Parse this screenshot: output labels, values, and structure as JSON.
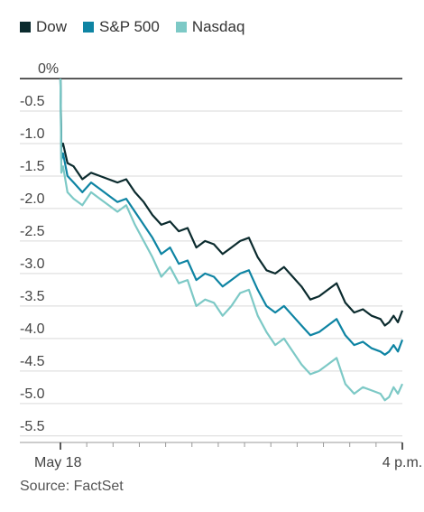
{
  "legend": {
    "items": [
      {
        "label": "Dow",
        "color": "#0b2b2e"
      },
      {
        "label": "S&P 500",
        "color": "#0e84a3"
      },
      {
        "label": "Nasdaq",
        "color": "#7dc9c6"
      }
    ]
  },
  "source": "Source: FactSet",
  "chart_data": {
    "type": "line",
    "ylim": [
      -5.6,
      0
    ],
    "y_ticks": [
      {
        "value": 0,
        "label": "0%"
      },
      {
        "value": -0.5,
        "label": "-0.5"
      },
      {
        "value": -1.0,
        "label": "-1.0"
      },
      {
        "value": -1.5,
        "label": "-1.5"
      },
      {
        "value": -2.0,
        "label": "-2.0"
      },
      {
        "value": -2.5,
        "label": "-2.5"
      },
      {
        "value": -3.0,
        "label": "-3.0"
      },
      {
        "value": -3.5,
        "label": "-3.5"
      },
      {
        "value": -4.0,
        "label": "-4.0"
      },
      {
        "value": -4.5,
        "label": "-4.5"
      },
      {
        "value": -5.0,
        "label": "-5.0"
      },
      {
        "value": -5.5,
        "label": "-5.5"
      }
    ],
    "x_labels": [
      {
        "time": "9:30",
        "label": "May 18"
      },
      {
        "time": "16:00",
        "label": "4 p.m."
      }
    ],
    "x_time_ticks": [
      "9:30",
      "10:00",
      "10:30",
      "11:00",
      "11:30",
      "12:00",
      "12:30",
      "13:00",
      "13:30",
      "14:00",
      "14:30",
      "15:00",
      "15:30",
      "16:00"
    ],
    "grid": true,
    "series": [
      {
        "name": "Dow",
        "color": "#0b2b2e",
        "points": [
          [
            "9:30",
            0.0
          ],
          [
            "9:31",
            -1.05
          ],
          [
            "9:33",
            -1.0
          ],
          [
            "9:38",
            -1.3
          ],
          [
            "9:45",
            -1.35
          ],
          [
            "9:55",
            -1.55
          ],
          [
            "10:05",
            -1.45
          ],
          [
            "10:15",
            -1.5
          ],
          [
            "10:25",
            -1.55
          ],
          [
            "10:35",
            -1.6
          ],
          [
            "10:45",
            -1.55
          ],
          [
            "10:55",
            -1.75
          ],
          [
            "11:05",
            -1.9
          ],
          [
            "11:15",
            -2.1
          ],
          [
            "11:25",
            -2.25
          ],
          [
            "11:35",
            -2.2
          ],
          [
            "11:45",
            -2.35
          ],
          [
            "11:55",
            -2.3
          ],
          [
            "12:05",
            -2.6
          ],
          [
            "12:15",
            -2.5
          ],
          [
            "12:25",
            -2.55
          ],
          [
            "12:35",
            -2.7
          ],
          [
            "12:45",
            -2.6
          ],
          [
            "12:55",
            -2.5
          ],
          [
            "13:05",
            -2.45
          ],
          [
            "13:15",
            -2.75
          ],
          [
            "13:25",
            -2.95
          ],
          [
            "13:35",
            -3.0
          ],
          [
            "13:45",
            -2.9
          ],
          [
            "13:55",
            -3.05
          ],
          [
            "14:05",
            -3.2
          ],
          [
            "14:15",
            -3.4
          ],
          [
            "14:25",
            -3.35
          ],
          [
            "14:35",
            -3.25
          ],
          [
            "14:45",
            -3.15
          ],
          [
            "14:55",
            -3.45
          ],
          [
            "15:05",
            -3.6
          ],
          [
            "15:15",
            -3.55
          ],
          [
            "15:25",
            -3.65
          ],
          [
            "15:35",
            -3.7
          ],
          [
            "15:40",
            -3.8
          ],
          [
            "15:45",
            -3.75
          ],
          [
            "15:50",
            -3.65
          ],
          [
            "15:55",
            -3.75
          ],
          [
            "16:00",
            -3.57
          ]
        ]
      },
      {
        "name": "S&P 500",
        "color": "#0e84a3",
        "points": [
          [
            "9:30",
            0.0
          ],
          [
            "9:31",
            -1.25
          ],
          [
            "9:33",
            -1.15
          ],
          [
            "9:38",
            -1.5
          ],
          [
            "9:45",
            -1.6
          ],
          [
            "9:55",
            -1.75
          ],
          [
            "10:05",
            -1.6
          ],
          [
            "10:15",
            -1.7
          ],
          [
            "10:25",
            -1.8
          ],
          [
            "10:35",
            -1.9
          ],
          [
            "10:45",
            -1.85
          ],
          [
            "10:55",
            -2.05
          ],
          [
            "11:05",
            -2.25
          ],
          [
            "11:15",
            -2.45
          ],
          [
            "11:25",
            -2.7
          ],
          [
            "11:35",
            -2.6
          ],
          [
            "11:45",
            -2.85
          ],
          [
            "11:55",
            -2.8
          ],
          [
            "12:05",
            -3.1
          ],
          [
            "12:15",
            -3.0
          ],
          [
            "12:25",
            -3.05
          ],
          [
            "12:35",
            -3.2
          ],
          [
            "12:45",
            -3.1
          ],
          [
            "12:55",
            -3.0
          ],
          [
            "13:05",
            -2.95
          ],
          [
            "13:15",
            -3.25
          ],
          [
            "13:25",
            -3.5
          ],
          [
            "13:35",
            -3.6
          ],
          [
            "13:45",
            -3.5
          ],
          [
            "13:55",
            -3.65
          ],
          [
            "14:05",
            -3.8
          ],
          [
            "14:15",
            -3.95
          ],
          [
            "14:25",
            -3.9
          ],
          [
            "14:35",
            -3.8
          ],
          [
            "14:45",
            -3.7
          ],
          [
            "14:55",
            -3.95
          ],
          [
            "15:05",
            -4.1
          ],
          [
            "15:15",
            -4.05
          ],
          [
            "15:25",
            -4.15
          ],
          [
            "15:35",
            -4.2
          ],
          [
            "15:40",
            -4.25
          ],
          [
            "15:45",
            -4.2
          ],
          [
            "15:50",
            -4.1
          ],
          [
            "15:55",
            -4.2
          ],
          [
            "16:00",
            -4.02
          ]
        ]
      },
      {
        "name": "Nasdaq",
        "color": "#7dc9c6",
        "points": [
          [
            "9:30",
            0.0
          ],
          [
            "9:31",
            -1.45
          ],
          [
            "9:33",
            -1.35
          ],
          [
            "9:38",
            -1.75
          ],
          [
            "9:45",
            -1.85
          ],
          [
            "9:55",
            -1.95
          ],
          [
            "10:05",
            -1.75
          ],
          [
            "10:15",
            -1.85
          ],
          [
            "10:25",
            -1.95
          ],
          [
            "10:35",
            -2.05
          ],
          [
            "10:45",
            -1.95
          ],
          [
            "10:55",
            -2.25
          ],
          [
            "11:05",
            -2.5
          ],
          [
            "11:15",
            -2.75
          ],
          [
            "11:25",
            -3.05
          ],
          [
            "11:35",
            -2.9
          ],
          [
            "11:45",
            -3.15
          ],
          [
            "11:55",
            -3.1
          ],
          [
            "12:05",
            -3.5
          ],
          [
            "12:15",
            -3.4
          ],
          [
            "12:25",
            -3.45
          ],
          [
            "12:35",
            -3.65
          ],
          [
            "12:45",
            -3.5
          ],
          [
            "12:55",
            -3.3
          ],
          [
            "13:05",
            -3.25
          ],
          [
            "13:15",
            -3.65
          ],
          [
            "13:25",
            -3.9
          ],
          [
            "13:35",
            -4.1
          ],
          [
            "13:45",
            -4.0
          ],
          [
            "13:55",
            -4.2
          ],
          [
            "14:05",
            -4.4
          ],
          [
            "14:15",
            -4.55
          ],
          [
            "14:25",
            -4.5
          ],
          [
            "14:35",
            -4.4
          ],
          [
            "14:45",
            -4.3
          ],
          [
            "14:55",
            -4.7
          ],
          [
            "15:05",
            -4.85
          ],
          [
            "15:15",
            -4.75
          ],
          [
            "15:25",
            -4.8
          ],
          [
            "15:35",
            -4.85
          ],
          [
            "15:40",
            -4.95
          ],
          [
            "15:45",
            -4.9
          ],
          [
            "15:50",
            -4.75
          ],
          [
            "15:55",
            -4.85
          ],
          [
            "16:00",
            -4.7
          ]
        ]
      }
    ]
  }
}
